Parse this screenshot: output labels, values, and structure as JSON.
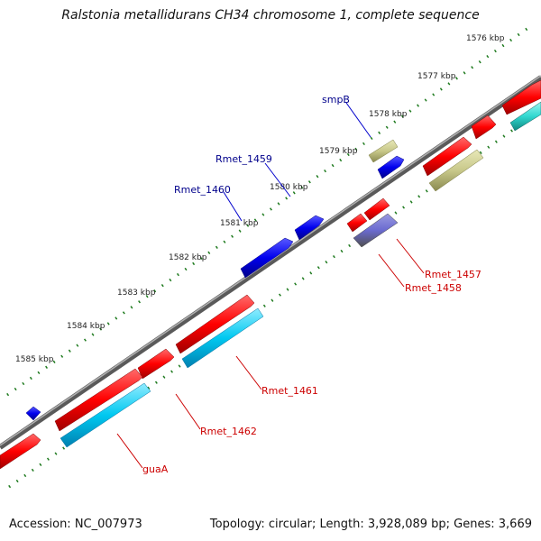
{
  "title": "Ralstonia metallidurans CH34 chromosome 1, complete sequence",
  "footer": {
    "accession": "Accession: NC_007973",
    "summary": "Topology: circular; Length: 3,928,089 bp; Genes: 3,669"
  },
  "colors": {
    "backbone": "#808080",
    "tick": "#1e7a1e",
    "red": "#ff0000",
    "blue": "#0000ee",
    "cyan": "#00c8f0",
    "olive": "#c8c88a",
    "teal": "#30d8d0",
    "slate": "#6a6aa8",
    "label_blue": "#00008b",
    "label_red": "#cc0000"
  },
  "scale_labels": [
    "1576 kbp",
    "1577 kbp",
    "1578 kbp",
    "1579 kbp",
    "1580 kbp",
    "1581 kbp",
    "1582 kbp",
    "1583 kbp",
    "1584 kbp",
    "1585 kbp"
  ],
  "gene_labels": {
    "smpB": "smpB",
    "rmet_1459": "Rmet_1459",
    "rmet_1460": "Rmet_1460",
    "rmet_1457": "Rmet_1457",
    "rmet_1458": "Rmet_1458",
    "rmet_1461": "Rmet_1461",
    "rmet_1462": "Rmet_1462",
    "guaA": "guaA"
  }
}
